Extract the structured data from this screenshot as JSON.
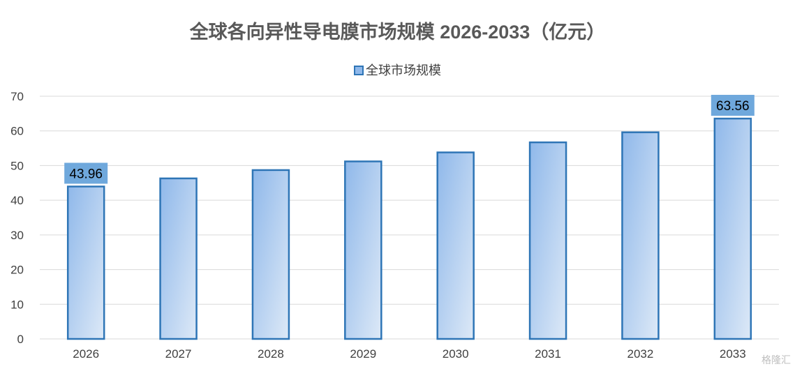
{
  "chart_data": {
    "type": "bar",
    "title": "全球各向异性导电膜市场规模 2026-2033（亿元）",
    "categories": [
      "2026",
      "2027",
      "2028",
      "2029",
      "2030",
      "2031",
      "2032",
      "2033"
    ],
    "series": [
      {
        "name": "全球市场规模",
        "values": [
          43.96,
          46.3,
          48.7,
          51.2,
          53.8,
          56.7,
          59.6,
          63.56
        ]
      }
    ],
    "data_labels": [
      {
        "category": "2026",
        "text": "43.96"
      },
      {
        "category": "2033",
        "text": "63.56"
      }
    ],
    "ylim": [
      0,
      70
    ],
    "yticks": [
      0,
      10,
      20,
      30,
      40,
      50,
      60,
      70
    ],
    "xlabel": "",
    "ylabel": "",
    "grid": true,
    "legend_position": "top",
    "colors": {
      "bar_fill_start": "#8fb8ea",
      "bar_fill_end": "#dde9f7",
      "bar_border": "#2e75b6",
      "label_bg": "#6fa8dc",
      "grid": "#d9d9d9"
    }
  },
  "watermark": "格隆汇"
}
